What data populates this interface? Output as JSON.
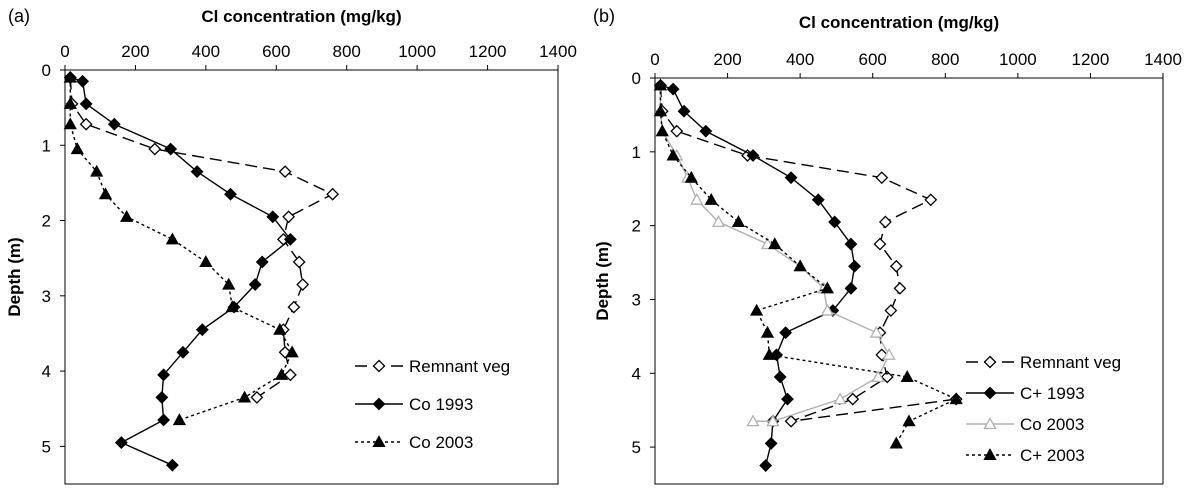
{
  "chart_data": [
    {
      "type": "line",
      "panel_label": "(a)",
      "title": "",
      "xlabel": "Cl concentration (mg/kg)",
      "ylabel": "Depth (m)",
      "xlim": [
        0,
        1400
      ],
      "ylim": [
        0,
        5.5
      ],
      "x_axis_position": "top",
      "y_inverted": true,
      "xticks": [
        "0",
        "200",
        "400",
        "600",
        "800",
        "1000",
        "1200",
        "1400"
      ],
      "yticks": [
        "0",
        "1",
        "2",
        "3",
        "4",
        "5"
      ],
      "grid": false,
      "legend_position": "bottom-right",
      "series": [
        {
          "name": "Remnant veg",
          "color": "#000000",
          "dash": "12,6",
          "marker": "diamond-open",
          "points": [
            [
              15,
              0.1
            ],
            [
              20,
              0.45
            ],
            [
              60,
              0.72
            ],
            [
              255,
              1.05
            ],
            [
              625,
              1.35
            ],
            [
              760,
              1.65
            ],
            [
              635,
              1.95
            ],
            [
              620,
              2.25
            ],
            [
              665,
              2.55
            ],
            [
              675,
              2.85
            ],
            [
              650,
              3.15
            ],
            [
              620,
              3.45
            ],
            [
              625,
              3.75
            ],
            [
              640,
              4.05
            ],
            [
              545,
              4.35
            ]
          ]
        },
        {
          "name": "Co 1993",
          "color": "#000000",
          "dash": "",
          "marker": "diamond-filled",
          "points": [
            [
              15,
              0.1
            ],
            [
              50,
              0.15
            ],
            [
              60,
              0.45
            ],
            [
              140,
              0.72
            ],
            [
              300,
              1.05
            ],
            [
              375,
              1.35
            ],
            [
              470,
              1.65
            ],
            [
              590,
              1.95
            ],
            [
              640,
              2.25
            ],
            [
              560,
              2.55
            ],
            [
              540,
              2.85
            ],
            [
              480,
              3.15
            ],
            [
              390,
              3.45
            ],
            [
              335,
              3.75
            ],
            [
              280,
              4.05
            ],
            [
              275,
              4.35
            ],
            [
              280,
              4.65
            ],
            [
              160,
              4.95
            ],
            [
              305,
              5.25
            ]
          ]
        },
        {
          "name": "Co 2003",
          "color": "#000000",
          "dash": "3,3",
          "marker": "triangle-filled",
          "points": [
            [
              15,
              0.1
            ],
            [
              15,
              0.45
            ],
            [
              15,
              0.72
            ],
            [
              35,
              1.05
            ],
            [
              90,
              1.35
            ],
            [
              115,
              1.65
            ],
            [
              175,
              1.95
            ],
            [
              305,
              2.25
            ],
            [
              400,
              2.55
            ],
            [
              465,
              2.85
            ],
            [
              475,
              3.15
            ],
            [
              610,
              3.45
            ],
            [
              645,
              3.75
            ],
            [
              615,
              4.05
            ],
            [
              510,
              4.35
            ],
            [
              325,
              4.65
            ]
          ]
        }
      ]
    },
    {
      "type": "line",
      "panel_label": "(b)",
      "title": "",
      "xlabel": "Cl concentration (mg/kg)",
      "ylabel": "Depth (m)",
      "xlim": [
        0,
        1400
      ],
      "ylim": [
        0,
        5.5
      ],
      "x_axis_position": "top",
      "y_inverted": true,
      "xticks": [
        "0",
        "200",
        "400",
        "600",
        "800",
        "1000",
        "1200",
        "1400"
      ],
      "yticks": [
        "0",
        "1",
        "2",
        "3",
        "4",
        "5"
      ],
      "grid": false,
      "legend_position": "bottom-right",
      "series": [
        {
          "name": "Remnant veg",
          "color": "#000000",
          "dash": "12,6",
          "marker": "diamond-open",
          "points": [
            [
              15,
              0.1
            ],
            [
              20,
              0.45
            ],
            [
              60,
              0.72
            ],
            [
              255,
              1.05
            ],
            [
              625,
              1.35
            ],
            [
              760,
              1.65
            ],
            [
              635,
              1.95
            ],
            [
              620,
              2.25
            ],
            [
              665,
              2.55
            ],
            [
              675,
              2.85
            ],
            [
              650,
              3.15
            ],
            [
              620,
              3.45
            ],
            [
              625,
              3.75
            ],
            [
              640,
              4.05
            ],
            [
              545,
              4.35
            ],
            [
              375,
              4.65
            ],
            [
              830,
              4.35
            ]
          ]
        },
        {
          "name": "C+ 1993",
          "color": "#000000",
          "dash": "",
          "marker": "diamond-filled",
          "points": [
            [
              15,
              0.1
            ],
            [
              50,
              0.15
            ],
            [
              80,
              0.45
            ],
            [
              140,
              0.72
            ],
            [
              270,
              1.05
            ],
            [
              375,
              1.35
            ],
            [
              450,
              1.65
            ],
            [
              495,
              1.95
            ],
            [
              540,
              2.25
            ],
            [
              550,
              2.55
            ],
            [
              540,
              2.85
            ],
            [
              490,
              3.15
            ],
            [
              360,
              3.45
            ],
            [
              335,
              3.75
            ],
            [
              345,
              4.05
            ],
            [
              365,
              4.35
            ],
            [
              325,
              4.65
            ],
            [
              320,
              4.95
            ],
            [
              305,
              5.25
            ]
          ]
        },
        {
          "name": "Co 2003",
          "color": "#b0b0b0",
          "dash": "",
          "marker": "triangle-open",
          "points": [
            [
              15,
              0.1
            ],
            [
              15,
              0.45
            ],
            [
              20,
              0.72
            ],
            [
              60,
              1.05
            ],
            [
              90,
              1.35
            ],
            [
              115,
              1.65
            ],
            [
              175,
              1.95
            ],
            [
              310,
              2.25
            ],
            [
              400,
              2.55
            ],
            [
              465,
              2.85
            ],
            [
              475,
              3.15
            ],
            [
              610,
              3.45
            ],
            [
              645,
              3.75
            ],
            [
              615,
              4.05
            ],
            [
              510,
              4.35
            ],
            [
              325,
              4.65
            ],
            [
              270,
              4.65
            ]
          ]
        },
        {
          "name": "C+ 2003",
          "color": "#000000",
          "dash": "3,3",
          "marker": "triangle-filled",
          "points": [
            [
              15,
              0.1
            ],
            [
              15,
              0.45
            ],
            [
              20,
              0.72
            ],
            [
              50,
              1.05
            ],
            [
              100,
              1.35
            ],
            [
              155,
              1.65
            ],
            [
              230,
              1.95
            ],
            [
              330,
              2.25
            ],
            [
              400,
              2.55
            ],
            [
              475,
              2.85
            ],
            [
              280,
              3.15
            ],
            [
              310,
              3.45
            ],
            [
              315,
              3.75
            ],
            [
              695,
              4.05
            ],
            [
              830,
              4.35
            ],
            [
              700,
              4.65
            ],
            [
              665,
              4.95
            ]
          ]
        }
      ]
    }
  ]
}
